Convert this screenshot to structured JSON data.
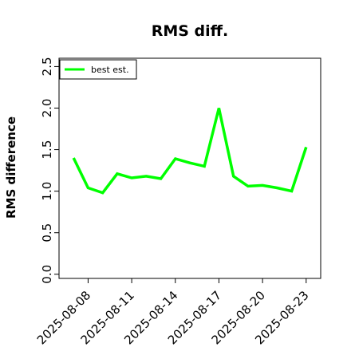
{
  "chart_data": {
    "type": "line",
    "title": "RMS diff.",
    "xlabel": "",
    "ylabel": "RMS difference",
    "x_tick_labels": [
      "2025-08-08",
      "2025-08-11",
      "2025-08-14",
      "2025-08-17",
      "2025-08-20",
      "2025-08-23"
    ],
    "x_ticks": [
      "2025-08-08",
      "2025-08-11",
      "2025-08-14",
      "2025-08-17",
      "2025-08-20",
      "2025-08-23"
    ],
    "y_tick_labels": [
      "0.0",
      "0.5",
      "1.0",
      "1.5",
      "2.0",
      "2.5"
    ],
    "y_ticks": [
      0.0,
      0.5,
      1.0,
      1.5,
      2.0,
      2.5
    ],
    "ylim": [
      -0.05,
      2.6
    ],
    "xlim": [
      "2025-08-06",
      "2025-08-24"
    ],
    "grid": false,
    "legend_position": "top-left",
    "series": [
      {
        "name": "best est.",
        "color": "#00ff00",
        "x": [
          "2025-08-07",
          "2025-08-08",
          "2025-08-09",
          "2025-08-10",
          "2025-08-11",
          "2025-08-12",
          "2025-08-13",
          "2025-08-14",
          "2025-08-15",
          "2025-08-16",
          "2025-08-17",
          "2025-08-18",
          "2025-08-19",
          "2025-08-20",
          "2025-08-21",
          "2025-08-22",
          "2025-08-23"
        ],
        "values": [
          1.4,
          1.04,
          0.98,
          1.21,
          1.16,
          1.18,
          1.15,
          1.39,
          1.34,
          1.3,
          2.0,
          1.18,
          1.06,
          1.07,
          1.04,
          1.0,
          1.53
        ]
      }
    ]
  }
}
